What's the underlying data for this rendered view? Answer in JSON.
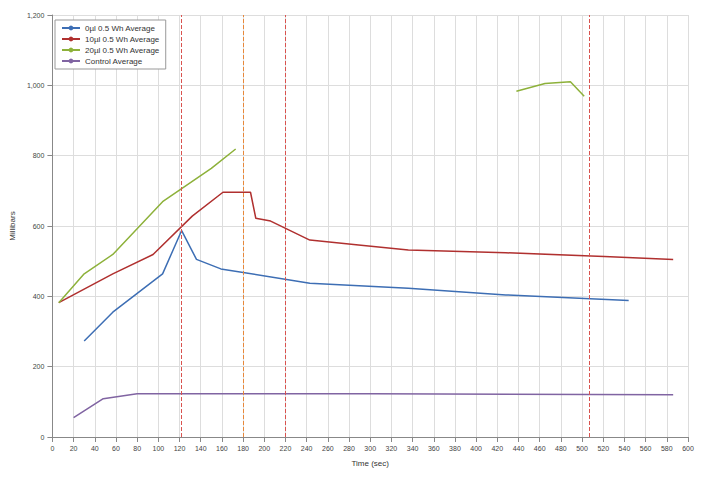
{
  "chart_data": {
    "type": "line",
    "x_label": "Time (sec)",
    "y_label": "Millibars",
    "xlim": [
      0,
      600
    ],
    "xticks": [
      0,
      20,
      40,
      60,
      80,
      100,
      120,
      140,
      160,
      180,
      200,
      220,
      240,
      260,
      280,
      300,
      320,
      340,
      360,
      380,
      400,
      420,
      440,
      460,
      480,
      500,
      520,
      540,
      560,
      580,
      600
    ],
    "ylim": [
      0,
      1200
    ],
    "yticks": [
      0,
      200,
      400,
      600,
      800,
      1000,
      1200
    ],
    "grid": true,
    "legend": "upper left",
    "series": [
      {
        "name": "0µl 0.5 Wh Average",
        "color": "#3d6eb4",
        "x": [
          30,
          57,
          104,
          122,
          136,
          159,
          243,
          336,
          428,
          544
        ],
        "values": [
          273,
          355,
          464,
          587,
          505,
          478,
          437,
          423,
          404,
          388
        ]
      },
      {
        "name": "10µl 0.5 Wh Average",
        "color": "#b0302f",
        "x": [
          6,
          57,
          95,
          132,
          161,
          187,
          192,
          206,
          243,
          289,
          336,
          428,
          521,
          586
        ],
        "values": [
          382,
          464,
          519,
          628,
          696,
          696,
          622,
          614,
          560,
          546,
          532,
          524,
          513,
          505
        ]
      },
      {
        "name": "20µl 0.5 Wh Average",
        "color": "#8db13a",
        "x": [
          6,
          30,
          57,
          104,
          150,
          173,
          300,
          438,
          465,
          489,
          502
        ],
        "values": [
          382,
          464,
          519,
          669,
          764,
          819,
          null,
          983,
          1005,
          1010,
          969
        ]
      },
      {
        "name": "Control Average",
        "color": "#8064a2",
        "x": [
          20,
          48,
          80,
          300,
          586
        ],
        "values": [
          55,
          109,
          123,
          123,
          120
        ]
      }
    ],
    "vlines": [
      {
        "x": 122,
        "color": "#d9534f"
      },
      {
        "x": 180,
        "color": "#e8883a"
      },
      {
        "x": 220,
        "color": "#d9534f"
      },
      {
        "x": 507,
        "color": "#d9534f"
      }
    ]
  }
}
